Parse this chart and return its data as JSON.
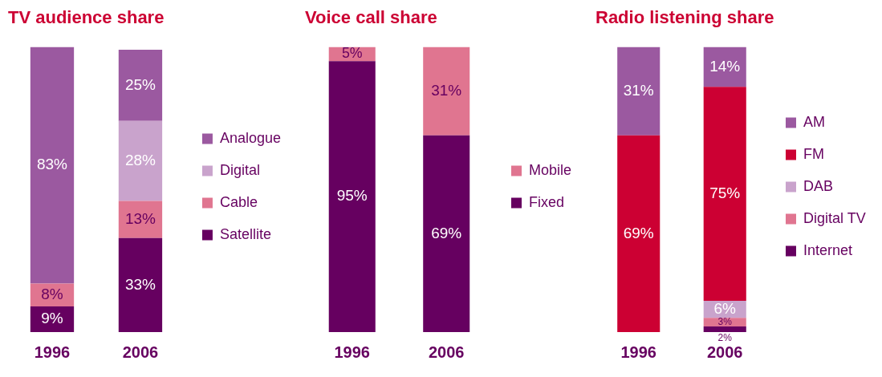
{
  "chart_data": [
    {
      "type": "bar",
      "title": "TV audience share",
      "categories": [
        "1996",
        "2006"
      ],
      "stacked": true,
      "legend": "right",
      "grid": false,
      "series": [
        {
          "name": "Satellite",
          "color": "#660060",
          "values": [
            9,
            33
          ],
          "value_labels": [
            "9%",
            "33%"
          ]
        },
        {
          "name": "Cable",
          "color": "#e07590",
          "values": [
            8,
            13
          ],
          "value_labels": [
            "8%",
            "13%"
          ]
        },
        {
          "name": "Digital",
          "color": "#c9a3cc",
          "values": [
            null,
            28
          ],
          "value_labels": [
            null,
            "28%"
          ]
        },
        {
          "name": "Analogue",
          "color": "#9b59a0",
          "values": [
            83,
            25
          ],
          "value_labels": [
            "83%",
            "25%"
          ]
        }
      ]
    },
    {
      "type": "bar",
      "title": "Voice call share",
      "categories": [
        "1996",
        "2006"
      ],
      "stacked": true,
      "legend": "right",
      "grid": false,
      "series": [
        {
          "name": "Fixed",
          "color": "#660060",
          "values": [
            95,
            69
          ],
          "value_labels": [
            "95%",
            "69%"
          ]
        },
        {
          "name": "Mobile",
          "color": "#e07590",
          "values": [
            5,
            31
          ],
          "value_labels": [
            "5%",
            "31%"
          ]
        }
      ]
    },
    {
      "type": "bar",
      "title": "Radio listening share",
      "categories": [
        "1996",
        "2006"
      ],
      "stacked": true,
      "legend": "right",
      "grid": false,
      "series": [
        {
          "name": "Internet",
          "color": "#660060",
          "values": [
            null,
            2
          ],
          "value_labels": [
            null,
            "2%"
          ]
        },
        {
          "name": "Digital TV",
          "color": "#e07590",
          "values": [
            null,
            3
          ],
          "value_labels": [
            null,
            "3%"
          ]
        },
        {
          "name": "DAB",
          "color": "#c9a3cc",
          "values": [
            null,
            6
          ],
          "value_labels": [
            null,
            "6%"
          ]
        },
        {
          "name": "FM",
          "color": "#cc0033",
          "values": [
            69,
            75
          ],
          "value_labels": [
            "69%",
            "75%"
          ]
        },
        {
          "name": "AM",
          "color": "#9b59a0",
          "values": [
            31,
            14
          ],
          "value_labels": [
            "31%",
            "14%"
          ]
        }
      ]
    }
  ]
}
